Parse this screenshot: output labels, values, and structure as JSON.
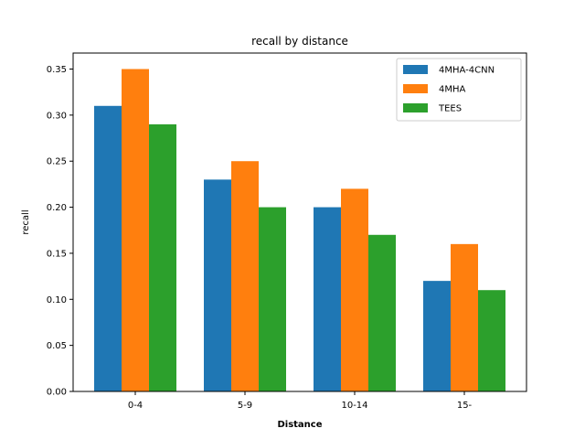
{
  "chart_data": {
    "type": "bar",
    "title": "recall by distance",
    "xlabel": "Distance",
    "ylabel": "recall",
    "categories": [
      "0-4",
      "5-9",
      "10-14",
      "15-"
    ],
    "series": [
      {
        "name": "4MHA-4CNN",
        "values": [
          0.31,
          0.23,
          0.2,
          0.12
        ],
        "color": "#1f77b4"
      },
      {
        "name": "4MHA",
        "values": [
          0.35,
          0.25,
          0.22,
          0.16
        ],
        "color": "#ff7f0e"
      },
      {
        "name": "TEES",
        "values": [
          0.29,
          0.2,
          0.17,
          0.11
        ],
        "color": "#2ca02c"
      }
    ],
    "ylim": [
      0,
      0.35
    ],
    "yticks": [
      "0.00",
      "0.05",
      "0.10",
      "0.15",
      "0.20",
      "0.25",
      "0.30",
      "0.35"
    ],
    "grid": false,
    "legend_position": "top-right"
  }
}
